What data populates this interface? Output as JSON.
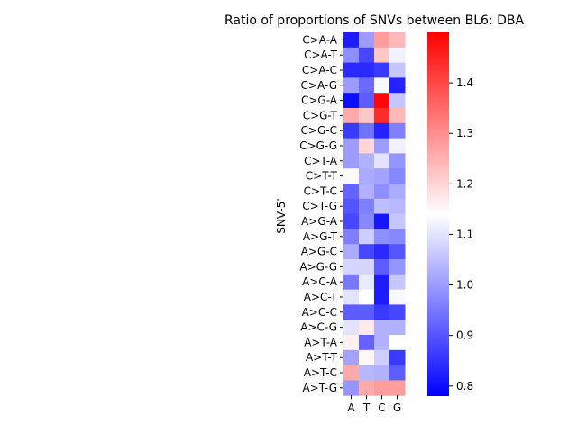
{
  "chart_data": {
    "type": "heatmap",
    "title": "Ratio of proportions of SNVs between BL6: DBA",
    "ylabel": "SNV-5'",
    "xlabel": "",
    "x_categories": [
      "A",
      "T",
      "C",
      "G"
    ],
    "y_categories": [
      "C>A-A",
      "C>A-T",
      "C>A-C",
      "C>A-G",
      "C>G-A",
      "C>G-T",
      "C>G-C",
      "C>G-G",
      "C>T-A",
      "C>T-T",
      "C>T-C",
      "C>T-G",
      "A>G-A",
      "A>G-T",
      "A>G-C",
      "A>G-G",
      "A>C-A",
      "A>C-T",
      "A>C-C",
      "A>C-G",
      "A>T-A",
      "A>T-T",
      "A>T-C",
      "A>T-G"
    ],
    "values": [
      [
        0.82,
        1.0,
        1.28,
        1.24
      ],
      [
        0.98,
        0.88,
        1.22,
        1.12
      ],
      [
        0.84,
        0.84,
        0.86,
        1.06
      ],
      [
        1.0,
        0.93,
        1.13,
        0.83
      ],
      [
        0.8,
        0.91,
        1.49,
        1.06
      ],
      [
        1.26,
        1.22,
        1.44,
        1.24
      ],
      [
        0.86,
        0.94,
        0.83,
        0.96
      ],
      [
        1.0,
        1.2,
        1.0,
        1.12
      ],
      [
        1.0,
        1.03,
        1.1,
        0.99
      ],
      [
        1.15,
        1.02,
        1.01,
        0.97
      ],
      [
        0.92,
        1.03,
        0.98,
        1.02
      ],
      [
        0.9,
        0.96,
        1.05,
        1.04
      ],
      [
        0.88,
        0.97,
        0.81,
        1.06
      ],
      [
        0.96,
        1.07,
        0.98,
        0.97
      ],
      [
        1.02,
        0.88,
        0.84,
        0.9
      ],
      [
        1.08,
        1.08,
        0.91,
        0.99
      ],
      [
        0.95,
        1.11,
        0.82,
        1.06
      ],
      [
        1.1,
        1.14,
        0.82,
        1.13
      ],
      [
        0.91,
        0.91,
        0.86,
        0.88
      ],
      [
        1.1,
        1.17,
        1.03,
        1.03
      ],
      [
        1.16,
        0.92,
        1.03,
        1.14
      ],
      [
        1.01,
        1.15,
        1.07,
        0.86
      ],
      [
        1.26,
        1.04,
        1.03,
        0.91
      ],
      [
        0.99,
        1.26,
        1.28,
        1.28
      ]
    ],
    "colormap": "bwr",
    "vmin": 0.78,
    "vmax": 1.5,
    "colorbar_ticks": [
      "0.8",
      "0.9",
      "1.0",
      "1.1",
      "1.2",
      "1.3",
      "1.4"
    ],
    "colorbar_tick_values": [
      0.8,
      0.9,
      1.0,
      1.1,
      1.2,
      1.3,
      1.4
    ]
  }
}
